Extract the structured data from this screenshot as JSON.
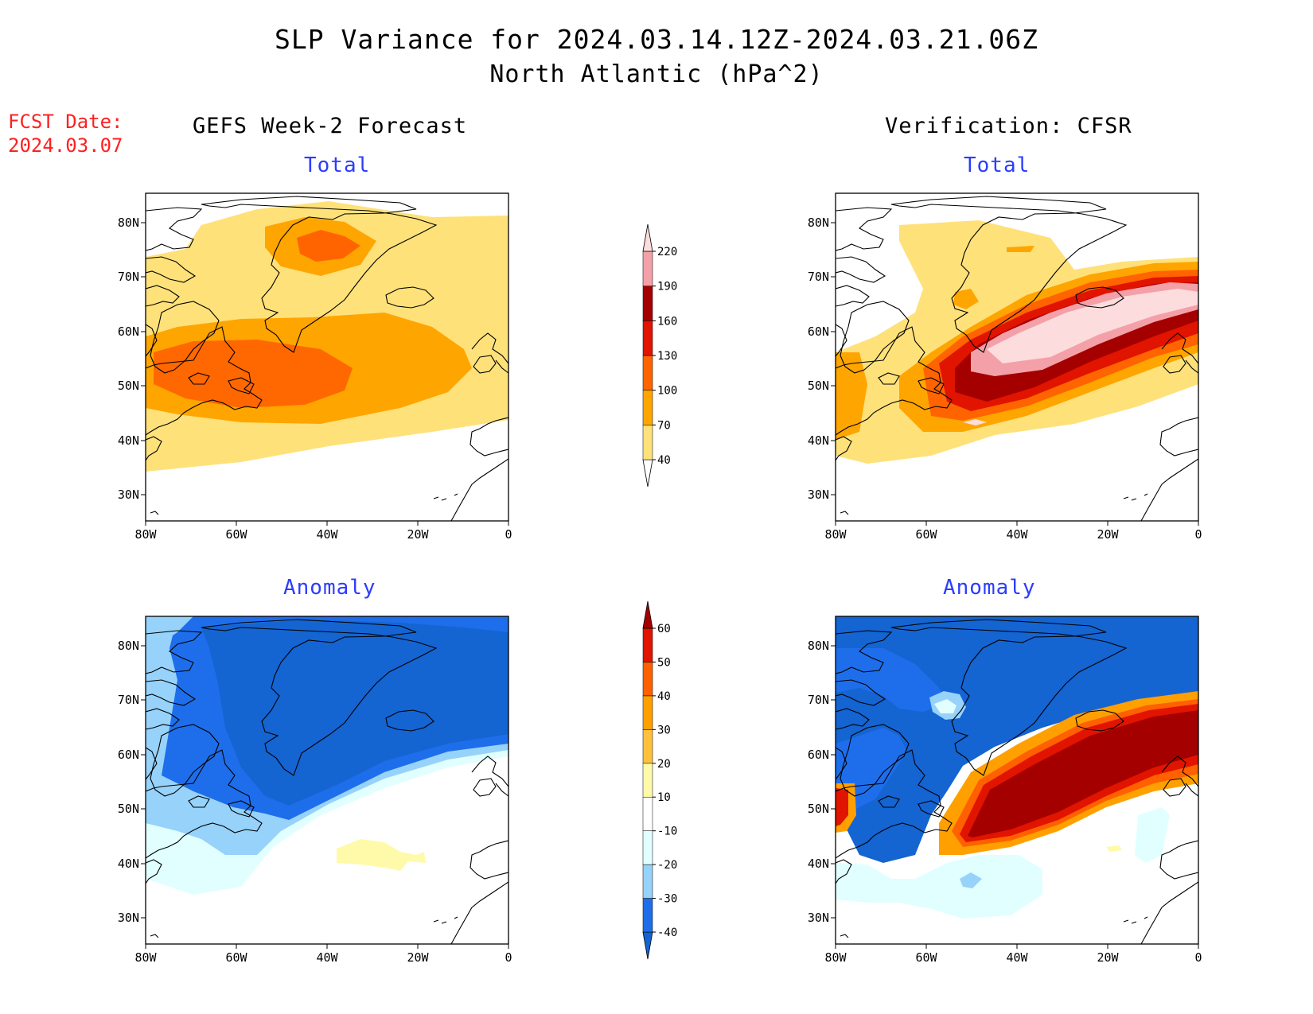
{
  "title": "SLP Variance for 2024.03.14.12Z-2024.03.21.06Z",
  "subtitle": "North Atlantic (hPa^2)",
  "fcst_date_label": "FCST Date:",
  "fcst_date_value": "2024.03.07",
  "column_left_title": "GEFS Week-2 Forecast",
  "column_right_title": "Verification: CFSR",
  "panels": {
    "top_left_title": "Total",
    "top_right_title": "Total",
    "bottom_left_title": "Anomaly",
    "bottom_right_title": "Anomaly"
  },
  "axes": {
    "lon_ticks": [
      "80W",
      "60W",
      "40W",
      "20W",
      "0"
    ],
    "lat_ticks": [
      "80N",
      "70N",
      "60N",
      "50N",
      "40N",
      "30N"
    ]
  },
  "total_colorbar": {
    "levels": [
      "40",
      "70",
      "100",
      "130",
      "160",
      "190",
      "220"
    ],
    "colors": [
      "#ffffff",
      "#ffe17a",
      "#ffa500",
      "#ff6400",
      "#e11400",
      "#a50000",
      "#f4a0a8",
      "#fcdcdc"
    ]
  },
  "anomaly_colorbar": {
    "levels": [
      "-40",
      "-30",
      "-20",
      "-10",
      "10",
      "20",
      "30",
      "40",
      "50",
      "60"
    ],
    "colors": [
      "#1464d2",
      "#1e6eeb",
      "#96d2fa",
      "#e1ffff",
      "#ffffff",
      "#fffaaa",
      "#ffc03c",
      "#ffa000",
      "#ff6000",
      "#e11400",
      "#a50000"
    ]
  },
  "colors": {
    "anomaly_title": "#2b3cff",
    "fcst_label": "#ff2020",
    "coastline": "#000000"
  }
}
